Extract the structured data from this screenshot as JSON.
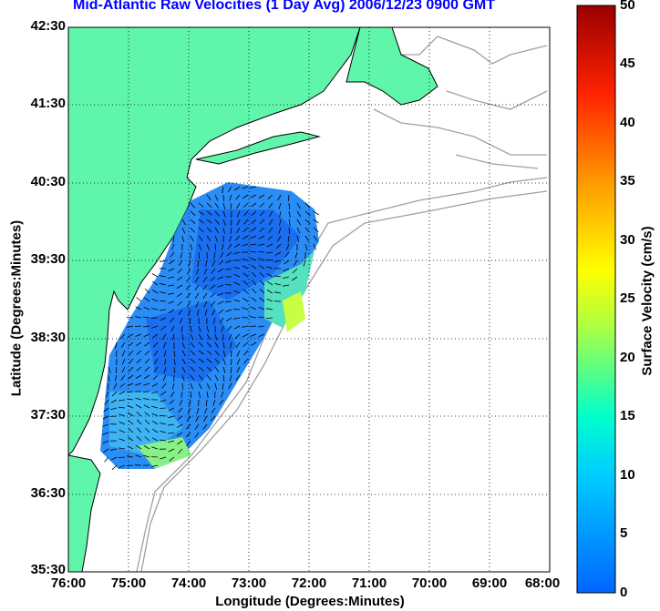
{
  "title": "Mid-Atlantic Raw Velocities (1 Day Avg) 2006/12/23 0900 GMT",
  "axes": {
    "xlabel": "Longitude (Degrees:Minutes)",
    "ylabel": "Latitude (Degrees:Minutes)",
    "lon_ticks": [
      "76:00",
      "75:00",
      "74:00",
      "73:00",
      "72:00",
      "71:00",
      "70:00",
      "69:00",
      "68:00"
    ],
    "lat_ticks": [
      "42:30",
      "41:30",
      "40:30",
      "39:30",
      "38:30",
      "37:30",
      "36:30",
      "35:30"
    ]
  },
  "colorbar": {
    "label": "Surface Velocity (cm/s)",
    "ticks": [
      "50",
      "45",
      "40",
      "35",
      "30",
      "25",
      "20",
      "15",
      "10",
      "5",
      "0"
    ],
    "range": [
      0,
      50
    ]
  },
  "colors": {
    "land": "#5ff5aa",
    "title": "#0000ff",
    "coast_outline": "#000000",
    "bathymetry": "#a0a0a0"
  }
}
